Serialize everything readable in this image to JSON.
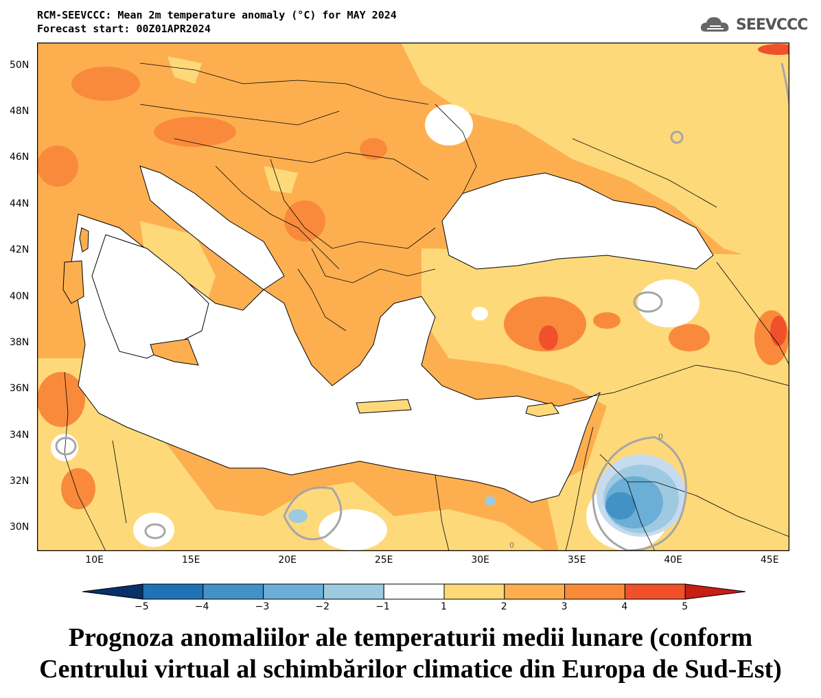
{
  "header": {
    "line1": "RCM-SEEVCCC: Mean 2m temperature anomaly (°C) for MAY 2024",
    "line2": "Forecast start: 00Z01APR2024"
  },
  "logo": {
    "text": "SEEVCCC",
    "icon": "cloud-logo-icon",
    "color": "#555555"
  },
  "map": {
    "lat_labels": [
      "50N",
      "48N",
      "46N",
      "44N",
      "42N",
      "40N",
      "38N",
      "36N",
      "34N",
      "32N",
      "30N"
    ],
    "lon_labels": [
      "10E",
      "15E",
      "20E",
      "25E",
      "30E",
      "35E",
      "40E",
      "45E"
    ],
    "extent": {
      "lon": [
        7,
        46
      ],
      "lat": [
        29,
        51
      ]
    },
    "contour_label": "0"
  },
  "colorbar": {
    "ticks": [
      "-5",
      "-4",
      "-3",
      "-2",
      "-1",
      "1",
      "2",
      "3",
      "4",
      "5"
    ],
    "colors": [
      "#08306b",
      "#2171b5",
      "#4292c6",
      "#6baed6",
      "#9ecae1",
      "#ffffff",
      "#fdd97a",
      "#fdaf50",
      "#f98a3c",
      "#f0512a",
      "#c81e14"
    ]
  },
  "caption": {
    "line1": "Prognoza anomaliilor ale temperaturii medii lunare (conform",
    "line2": "Centrului virtual al schimbărilor climatice din Europa de Sud-Est)"
  }
}
